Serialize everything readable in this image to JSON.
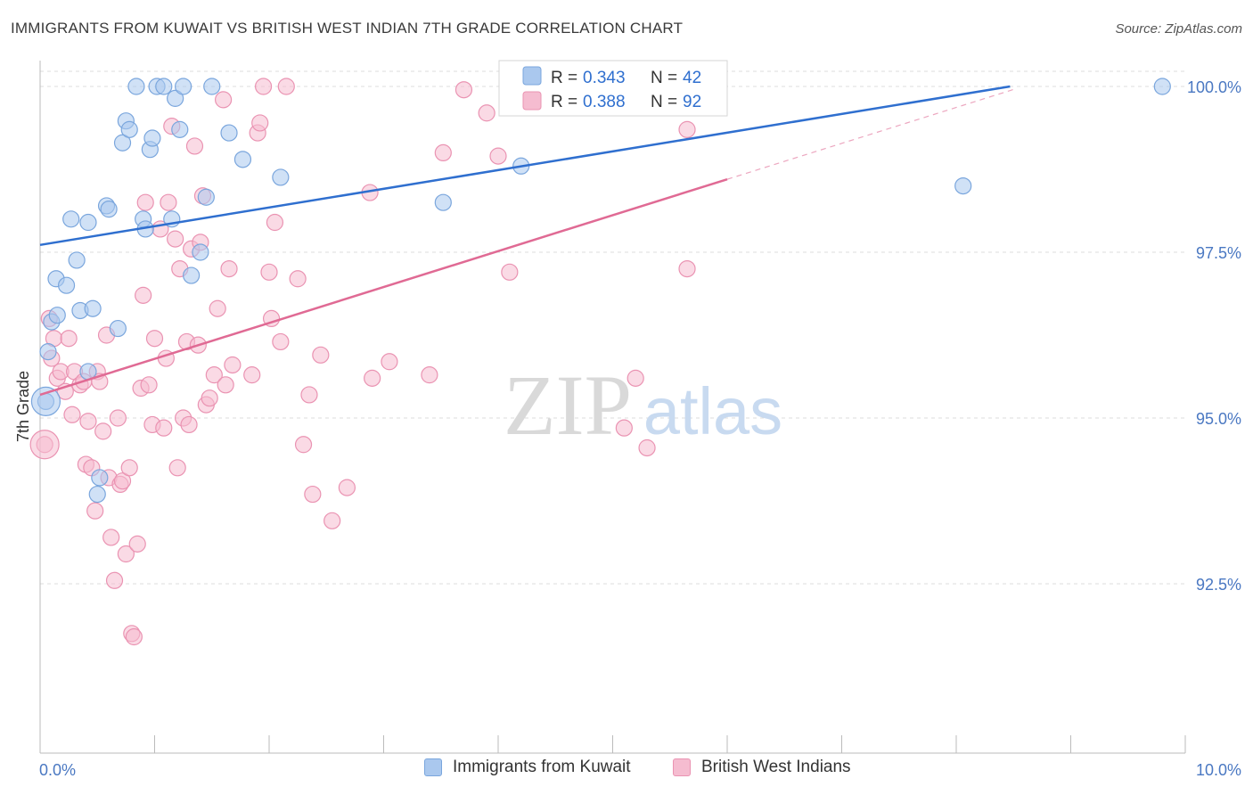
{
  "header": {
    "title": "IMMIGRANTS FROM KUWAIT VS BRITISH WEST INDIAN 7TH GRADE CORRELATION CHART",
    "source": "Source: ZipAtlas.com"
  },
  "watermark": {
    "zip": "ZIP",
    "atlas": "atlas"
  },
  "colors": {
    "blue_fill": "#aac8ee",
    "blue_stroke": "#7aa6dd",
    "blue_line": "#2f6fcf",
    "pink_fill": "#f5bcd0",
    "pink_stroke": "#ea93b2",
    "pink_line": "#e06a94",
    "tick_label": "#4a78c2",
    "grid": "#dcdcdc"
  },
  "legend_top": {
    "rows": [
      {
        "r_label": "R = ",
        "r_value": "0.343",
        "n_label": "N = ",
        "n_value": "42"
      },
      {
        "r_label": "R = ",
        "r_value": "0.388",
        "n_label": "N = ",
        "n_value": "92"
      }
    ]
  },
  "chart_data": {
    "type": "scatter",
    "title": "IMMIGRANTS FROM KUWAIT VS BRITISH WEST INDIAN 7TH GRADE CORRELATION CHART",
    "xlabel": "",
    "ylabel": "7th Grade",
    "xlim": [
      0,
      10
    ],
    "ylim": [
      90.0,
      100.2
    ],
    "x_tick_labels": [
      "0.0%",
      "10.0%"
    ],
    "y_ticks": [
      92.5,
      95.0,
      97.5,
      100.0
    ],
    "y_tick_labels": [
      "92.5%",
      "95.0%",
      "97.5%",
      "100.0%"
    ],
    "grid": true,
    "legend_placement": "bottom-center",
    "series": [
      {
        "name": "Immigrants from Kuwait",
        "color": "#aac8ee",
        "r": 0.343,
        "n": 42,
        "trend": {
          "x0": 0.0,
          "y0": 97.61,
          "x1": 8.47,
          "y1": 100.0,
          "dash_to_x": 8.47
        },
        "points": [
          [
            0.05,
            95.25
          ],
          [
            0.07,
            96.0
          ],
          [
            0.1,
            96.45
          ],
          [
            0.15,
            96.55
          ],
          [
            0.14,
            97.1
          ],
          [
            0.23,
            97.0
          ],
          [
            0.27,
            98.0
          ],
          [
            0.32,
            97.38
          ],
          [
            0.35,
            96.62
          ],
          [
            0.42,
            95.7
          ],
          [
            0.42,
            97.95
          ],
          [
            0.46,
            96.65
          ],
          [
            0.52,
            94.1
          ],
          [
            0.5,
            93.85
          ],
          [
            0.58,
            98.2
          ],
          [
            0.6,
            98.15
          ],
          [
            0.68,
            96.35
          ],
          [
            0.72,
            99.15
          ],
          [
            0.75,
            99.48
          ],
          [
            0.78,
            99.35
          ],
          [
            0.84,
            100.0
          ],
          [
            0.9,
            98.0
          ],
          [
            0.92,
            97.85
          ],
          [
            0.96,
            99.05
          ],
          [
            0.98,
            99.22
          ],
          [
            1.02,
            100.0
          ],
          [
            1.08,
            100.0
          ],
          [
            1.15,
            98.0
          ],
          [
            1.18,
            99.82
          ],
          [
            1.22,
            99.35
          ],
          [
            1.25,
            100.0
          ],
          [
            1.32,
            97.15
          ],
          [
            1.4,
            97.5
          ],
          [
            1.45,
            98.33
          ],
          [
            1.5,
            100.0
          ],
          [
            1.65,
            99.3
          ],
          [
            1.77,
            98.9
          ],
          [
            2.1,
            98.63
          ],
          [
            3.52,
            98.25
          ],
          [
            4.2,
            98.8
          ],
          [
            8.06,
            98.5
          ],
          [
            9.8,
            100.0
          ]
        ]
      },
      {
        "name": "British West Indians",
        "color": "#f5bcd0",
        "r": 0.388,
        "n": 92,
        "trend": {
          "x0": 0.0,
          "y0": 95.35,
          "x1": 6.0,
          "y1": 98.6,
          "dash_to_x": 8.5
        },
        "points": [
          [
            0.04,
            94.6
          ],
          [
            0.08,
            96.5
          ],
          [
            0.1,
            95.9
          ],
          [
            0.12,
            96.2
          ],
          [
            0.15,
            95.6
          ],
          [
            0.18,
            95.7
          ],
          [
            0.22,
            95.4
          ],
          [
            0.25,
            96.2
          ],
          [
            0.28,
            95.05
          ],
          [
            0.3,
            95.7
          ],
          [
            0.35,
            95.5
          ],
          [
            0.38,
            95.55
          ],
          [
            0.4,
            94.3
          ],
          [
            0.42,
            94.95
          ],
          [
            0.45,
            94.25
          ],
          [
            0.48,
            93.6
          ],
          [
            0.5,
            95.7
          ],
          [
            0.52,
            95.55
          ],
          [
            0.55,
            94.8
          ],
          [
            0.58,
            96.25
          ],
          [
            0.6,
            94.1
          ],
          [
            0.62,
            93.2
          ],
          [
            0.65,
            92.55
          ],
          [
            0.68,
            95.0
          ],
          [
            0.7,
            94.0
          ],
          [
            0.72,
            94.05
          ],
          [
            0.75,
            92.95
          ],
          [
            0.78,
            94.25
          ],
          [
            0.8,
            91.75
          ],
          [
            0.82,
            91.7
          ],
          [
            0.85,
            93.1
          ],
          [
            0.88,
            95.45
          ],
          [
            0.9,
            96.85
          ],
          [
            0.92,
            98.25
          ],
          [
            0.95,
            95.5
          ],
          [
            0.98,
            94.9
          ],
          [
            1.0,
            96.2
          ],
          [
            1.05,
            97.85
          ],
          [
            1.08,
            94.85
          ],
          [
            1.1,
            95.9
          ],
          [
            1.12,
            98.25
          ],
          [
            1.15,
            99.4
          ],
          [
            1.18,
            97.7
          ],
          [
            1.2,
            94.25
          ],
          [
            1.22,
            97.25
          ],
          [
            1.25,
            95.0
          ],
          [
            1.28,
            96.15
          ],
          [
            1.3,
            94.9
          ],
          [
            1.32,
            97.55
          ],
          [
            1.35,
            99.1
          ],
          [
            1.38,
            96.1
          ],
          [
            1.4,
            97.65
          ],
          [
            1.42,
            98.35
          ],
          [
            1.45,
            95.2
          ],
          [
            1.48,
            95.3
          ],
          [
            1.52,
            95.65
          ],
          [
            1.55,
            96.65
          ],
          [
            1.6,
            99.8
          ],
          [
            1.62,
            95.5
          ],
          [
            1.65,
            97.25
          ],
          [
            1.68,
            95.8
          ],
          [
            1.85,
            95.65
          ],
          [
            1.9,
            99.3
          ],
          [
            1.92,
            99.45
          ],
          [
            1.95,
            100.0
          ],
          [
            2.0,
            97.2
          ],
          [
            2.02,
            96.5
          ],
          [
            2.05,
            97.95
          ],
          [
            2.1,
            96.15
          ],
          [
            2.15,
            100.0
          ],
          [
            2.25,
            97.1
          ],
          [
            2.3,
            94.6
          ],
          [
            2.35,
            95.35
          ],
          [
            2.38,
            93.85
          ],
          [
            2.45,
            95.95
          ],
          [
            2.55,
            93.45
          ],
          [
            2.68,
            93.95
          ],
          [
            2.88,
            98.4
          ],
          [
            2.9,
            95.6
          ],
          [
            3.05,
            95.85
          ],
          [
            3.4,
            95.65
          ],
          [
            3.52,
            99.0
          ],
          [
            3.7,
            99.95
          ],
          [
            3.9,
            99.6
          ],
          [
            4.0,
            98.95
          ],
          [
            4.1,
            97.2
          ],
          [
            5.1,
            94.85
          ],
          [
            5.2,
            95.6
          ],
          [
            5.3,
            94.55
          ],
          [
            5.4,
            99.95
          ],
          [
            5.65,
            99.35
          ],
          [
            5.65,
            97.25
          ]
        ]
      }
    ]
  }
}
